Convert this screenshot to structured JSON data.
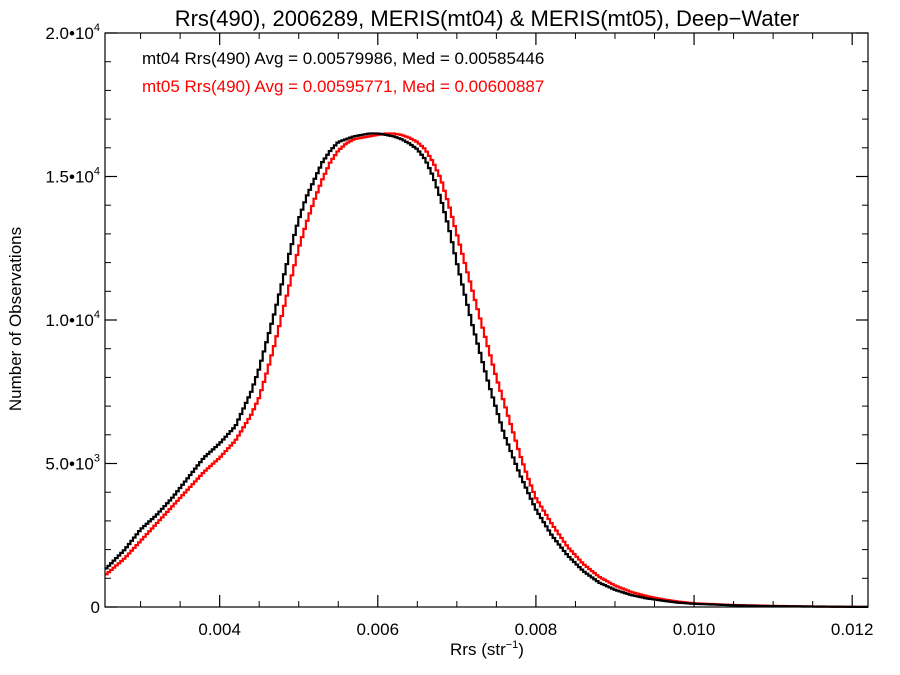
{
  "chart_data": {
    "type": "line",
    "title": "Rrs(490), 2006289, MERIS(mt04) & MERIS(mt05), Deep−Water",
    "xlabel": {
      "base": "Rrs (str",
      "sup": "−1",
      "tail": ")"
    },
    "ylabel": "Number of Observations",
    "xlim": [
      0.00255,
      0.0122
    ],
    "ylim": [
      0,
      20000
    ],
    "xticks": [
      {
        "value": 0.004,
        "label": "0.004"
      },
      {
        "value": 0.006,
        "label": "0.006"
      },
      {
        "value": 0.008,
        "label": "0.008"
      },
      {
        "value": 0.01,
        "label": "0.010"
      },
      {
        "value": 0.012,
        "label": "0.012"
      }
    ],
    "yticks": [
      {
        "value": 0,
        "mant": "0",
        "exp": ""
      },
      {
        "value": 5000,
        "mant": "5.0•10",
        "exp": "3"
      },
      {
        "value": 10000,
        "mant": "1.0•10",
        "exp": "4"
      },
      {
        "value": 15000,
        "mant": "1.5•10",
        "exp": "4"
      },
      {
        "value": 20000,
        "mant": "2.0•10",
        "exp": "4"
      }
    ],
    "legend_placement": "top-left",
    "series": [
      {
        "name": "mt04",
        "color": "#000000",
        "annotation": "mt04 Rrs(490) Avg = 0.00579986, Med = 0.00585446",
        "x": [
          0.00255,
          0.0028,
          0.003,
          0.0032,
          0.0034,
          0.0036,
          0.0038,
          0.004,
          0.0042,
          0.0044,
          0.0045,
          0.0046,
          0.0047,
          0.0048,
          0.0049,
          0.005,
          0.0051,
          0.0052,
          0.0053,
          0.0054,
          0.0055,
          0.0056,
          0.0057,
          0.0058,
          0.0059,
          0.006,
          0.0061,
          0.0062,
          0.0063,
          0.0064,
          0.0065,
          0.0066,
          0.0067,
          0.0068,
          0.0069,
          0.007,
          0.0071,
          0.0072,
          0.0073,
          0.0074,
          0.0075,
          0.0076,
          0.0077,
          0.0078,
          0.0079,
          0.008,
          0.0082,
          0.0084,
          0.0086,
          0.0088,
          0.009,
          0.0092,
          0.0094,
          0.0096,
          0.0098,
          0.01,
          0.0105,
          0.011,
          0.0115,
          0.012,
          0.0122
        ],
        "y": [
          1300,
          2000,
          2700,
          3200,
          3800,
          4500,
          5200,
          5700,
          6300,
          7500,
          8300,
          9300,
          10300,
          11400,
          12500,
          13500,
          14300,
          14900,
          15500,
          15900,
          16200,
          16300,
          16400,
          16450,
          16500,
          16500,
          16450,
          16400,
          16300,
          16150,
          15950,
          15600,
          15000,
          14200,
          13200,
          12000,
          10900,
          9800,
          8800,
          7800,
          6900,
          6000,
          5300,
          4600,
          4000,
          3400,
          2500,
          1800,
          1250,
          850,
          600,
          420,
          300,
          220,
          150,
          110,
          60,
          30,
          15,
          5,
          3
        ]
      },
      {
        "name": "mt05",
        "color": "#ff0000",
        "annotation": "mt05 Rrs(490) Avg = 0.00595771, Med = 0.00600887",
        "x": [
          0.00255,
          0.0028,
          0.003,
          0.0032,
          0.0034,
          0.0036,
          0.0038,
          0.004,
          0.0042,
          0.0044,
          0.0045,
          0.0046,
          0.0047,
          0.0048,
          0.0049,
          0.005,
          0.0051,
          0.0052,
          0.0053,
          0.0054,
          0.0055,
          0.0056,
          0.0057,
          0.0058,
          0.0059,
          0.006,
          0.0061,
          0.0062,
          0.0063,
          0.0064,
          0.0065,
          0.0066,
          0.0067,
          0.0068,
          0.0069,
          0.007,
          0.0071,
          0.0072,
          0.0073,
          0.0074,
          0.0075,
          0.0076,
          0.0077,
          0.0078,
          0.0079,
          0.008,
          0.0082,
          0.0084,
          0.0086,
          0.0088,
          0.009,
          0.0092,
          0.0094,
          0.0096,
          0.0098,
          0.01,
          0.0105,
          0.011,
          0.0115,
          0.012,
          0.0122
        ],
        "y": [
          1100,
          1700,
          2300,
          2900,
          3500,
          4100,
          4700,
          5200,
          5800,
          6700,
          7300,
          8200,
          9200,
          10300,
          11400,
          12500,
          13400,
          14200,
          14900,
          15500,
          15900,
          16150,
          16300,
          16350,
          16400,
          16450,
          16500,
          16500,
          16450,
          16350,
          16200,
          15950,
          15500,
          14900,
          14000,
          13000,
          12000,
          11000,
          10000,
          9000,
          8000,
          7100,
          6200,
          5300,
          4500,
          3800,
          2900,
          2100,
          1500,
          1050,
          750,
          530,
          380,
          270,
          190,
          130,
          70,
          40,
          20,
          8,
          4
        ]
      }
    ]
  }
}
